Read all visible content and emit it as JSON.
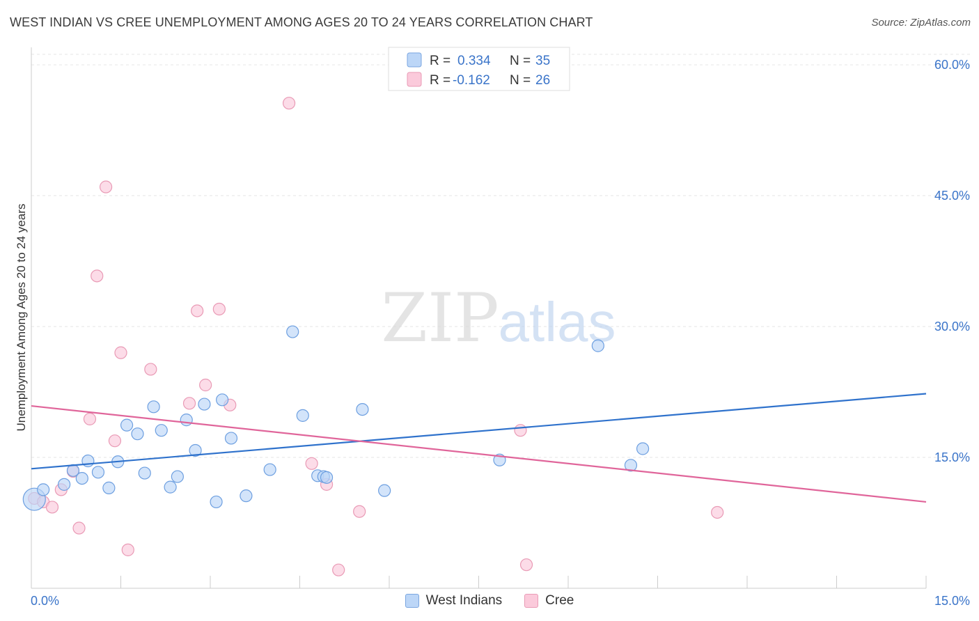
{
  "header": {
    "title": "WEST INDIAN VS CREE UNEMPLOYMENT AMONG AGES 20 TO 24 YEARS CORRELATION CHART",
    "source": "Source: ZipAtlas.com"
  },
  "watermark": {
    "zip": "ZIP",
    "atlas": "atlas"
  },
  "colors": {
    "blue_fill": "#bcd6f7",
    "blue_stroke": "#6d9fe0",
    "blue_line": "#2f72cc",
    "pink_fill": "#fbcadb",
    "pink_stroke": "#e99ab5",
    "pink_line": "#e0659a",
    "value_text": "#3a74c9",
    "grid": "#e6e6e6"
  },
  "chart_data": {
    "type": "scatter",
    "xlabel": "",
    "ylabel": "Unemployment Among Ages 20 to 24 years",
    "xlim": [
      0,
      15
    ],
    "ylim": [
      0,
      62
    ],
    "x_tick_labels": [
      {
        "value": 0,
        "label": "0.0%"
      },
      {
        "value": 15,
        "label": "15.0%"
      }
    ],
    "y_tick_labels": [
      {
        "value": 15,
        "label": "15.0%"
      },
      {
        "value": 30,
        "label": "30.0%"
      },
      {
        "value": 45,
        "label": "45.0%"
      },
      {
        "value": 60,
        "label": "60.0%"
      }
    ],
    "grid": "horizontal dashed",
    "legend_top": [
      {
        "r_label": "R =",
        "r_value": "0.334",
        "n_label": "N =",
        "n_value": "35"
      },
      {
        "r_label": "R =",
        "r_value": "-0.162",
        "n_label": "N =",
        "n_value": "26"
      }
    ],
    "series": [
      {
        "name": "West Indians",
        "trend": {
          "x": [
            0,
            15
          ],
          "y": [
            13.7,
            22.3
          ]
        },
        "points": [
          {
            "x": 0.05,
            "y": 10.2,
            "big": true
          },
          {
            "x": 0.2,
            "y": 11.3
          },
          {
            "x": 0.55,
            "y": 11.9
          },
          {
            "x": 0.7,
            "y": 13.5
          },
          {
            "x": 0.85,
            "y": 12.6
          },
          {
            "x": 0.95,
            "y": 14.6
          },
          {
            "x": 1.12,
            "y": 13.3
          },
          {
            "x": 1.3,
            "y": 11.5
          },
          {
            "x": 1.45,
            "y": 14.5
          },
          {
            "x": 1.6,
            "y": 18.7
          },
          {
            "x": 1.78,
            "y": 17.7
          },
          {
            "x": 1.9,
            "y": 13.2
          },
          {
            "x": 2.05,
            "y": 20.8
          },
          {
            "x": 2.18,
            "y": 18.1
          },
          {
            "x": 2.33,
            "y": 11.6
          },
          {
            "x": 2.45,
            "y": 12.8
          },
          {
            "x": 2.6,
            "y": 19.3
          },
          {
            "x": 2.75,
            "y": 15.8
          },
          {
            "x": 2.9,
            "y": 21.1
          },
          {
            "x": 3.1,
            "y": 9.9
          },
          {
            "x": 3.2,
            "y": 21.6
          },
          {
            "x": 3.35,
            "y": 17.2
          },
          {
            "x": 3.6,
            "y": 10.6
          },
          {
            "x": 4.0,
            "y": 13.6
          },
          {
            "x": 4.38,
            "y": 29.4
          },
          {
            "x": 4.55,
            "y": 19.8
          },
          {
            "x": 4.8,
            "y": 12.9
          },
          {
            "x": 4.9,
            "y": 12.8
          },
          {
            "x": 5.55,
            "y": 20.5
          },
          {
            "x": 5.92,
            "y": 11.2
          },
          {
            "x": 7.85,
            "y": 14.7
          },
          {
            "x": 10.05,
            "y": 14.1
          },
          {
            "x": 10.25,
            "y": 16.0
          },
          {
            "x": 9.5,
            "y": 27.8
          },
          {
            "x": 4.95,
            "y": 12.7
          }
        ]
      },
      {
        "name": "Cree",
        "trend": {
          "x": [
            0,
            15
          ],
          "y": [
            20.9,
            9.9
          ]
        },
        "points": [
          {
            "x": 0.05,
            "y": 10.3
          },
          {
            "x": 0.2,
            "y": 9.9
          },
          {
            "x": 0.35,
            "y": 9.3
          },
          {
            "x": 0.5,
            "y": 11.3
          },
          {
            "x": 0.7,
            "y": 13.4
          },
          {
            "x": 0.8,
            "y": 6.9
          },
          {
            "x": 0.98,
            "y": 19.4
          },
          {
            "x": 1.1,
            "y": 35.8
          },
          {
            "x": 1.25,
            "y": 46.0
          },
          {
            "x": 1.4,
            "y": 16.9
          },
          {
            "x": 1.5,
            "y": 27.0
          },
          {
            "x": 1.62,
            "y": 4.4
          },
          {
            "x": 2.0,
            "y": 25.1
          },
          {
            "x": 2.65,
            "y": 21.2
          },
          {
            "x": 2.78,
            "y": 31.8
          },
          {
            "x": 2.92,
            "y": 23.3
          },
          {
            "x": 3.15,
            "y": 32.0
          },
          {
            "x": 3.33,
            "y": 21.0
          },
          {
            "x": 4.32,
            "y": 55.6
          },
          {
            "x": 4.7,
            "y": 14.3
          },
          {
            "x": 4.95,
            "y": 11.9
          },
          {
            "x": 5.15,
            "y": 2.1
          },
          {
            "x": 5.5,
            "y": 8.8
          },
          {
            "x": 8.2,
            "y": 18.1
          },
          {
            "x": 8.3,
            "y": 2.7
          },
          {
            "x": 11.5,
            "y": 8.7
          }
        ]
      }
    ]
  }
}
